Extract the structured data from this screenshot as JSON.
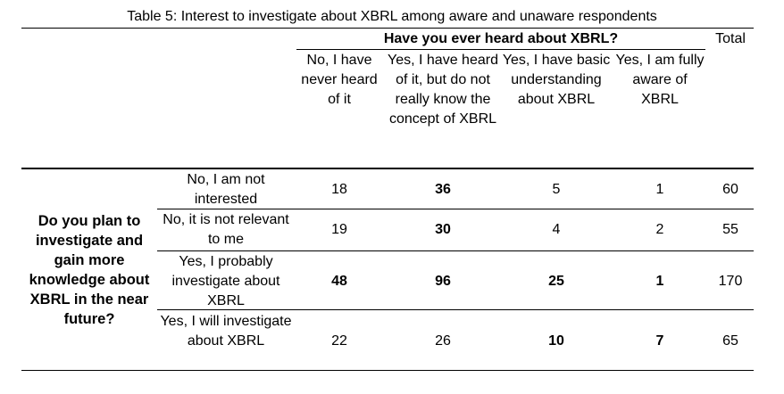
{
  "title": "Table 5: Interest to investigate about XBRL among aware and unaware respondents",
  "col_group_header": "Have you ever heard about XBRL?",
  "total_header": "Total",
  "columns": [
    "No, I have never heard of it",
    "Yes, I have heard of it, but do not really know the concept of XBRL",
    "Yes, I have basic understanding about XBRL",
    "Yes, I am fully aware of XBRL"
  ],
  "row_group_header": "Do you plan to investigate and gain more knowledge about XBRL in the near future?",
  "rows": [
    {
      "label": "No, I am not interested",
      "values": [
        "18",
        "36",
        "5",
        "1"
      ],
      "total": "60"
    },
    {
      "label": "No, it is not relevant to me",
      "values": [
        "19",
        "30",
        "4",
        "2"
      ],
      "total": "55"
    },
    {
      "label": "Yes, I probably investigate about XBRL",
      "values": [
        "48",
        "96",
        "25",
        "1"
      ],
      "total": "170"
    },
    {
      "label": "Yes, I will investigate about XBRL",
      "values": [
        "22",
        "26",
        "10",
        "7"
      ],
      "total": "65"
    }
  ]
}
